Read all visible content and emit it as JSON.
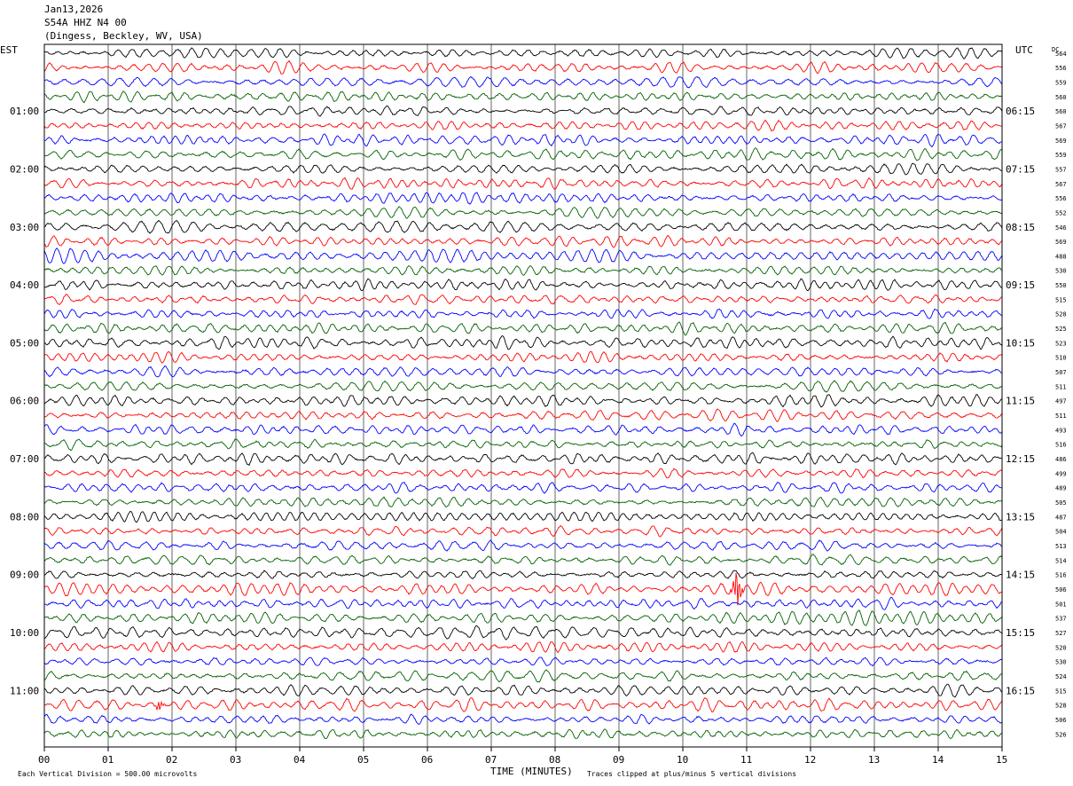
{
  "header": {
    "date": "Jan13,2026",
    "station": "S54A HHZ N4 00",
    "location": "(Dingess, Beckley, WV, USA)"
  },
  "chart_data": {
    "type": "line",
    "title": "S54A HHZ N4 00",
    "xlabel": "TIME (MINUTES)",
    "x_ticks": [
      "00",
      "01",
      "02",
      "03",
      "04",
      "05",
      "06",
      "07",
      "08",
      "09",
      "10",
      "11",
      "12",
      "13",
      "14",
      "15"
    ],
    "xlim": [
      0,
      15
    ],
    "left_axis_label": "EST",
    "right_axis_label": "UTC",
    "dc_label": "DC",
    "left_hour_labels": [
      "01:00",
      "02:00",
      "03:00",
      "04:00",
      "05:00",
      "06:00",
      "07:00",
      "08:00",
      "09:00",
      "10:00",
      "11:00"
    ],
    "right_hour_labels": [
      "06:15",
      "07:15",
      "08:15",
      "09:15",
      "10:15",
      "11:15",
      "12:15",
      "13:15",
      "14:15",
      "15:15",
      "16:15"
    ],
    "trace_colors": [
      "#000000",
      "#ff0000",
      "#0000ff",
      "#006000"
    ],
    "dc_values": [
      "564",
      "556",
      "559",
      "560",
      "560",
      "567",
      "569",
      "559",
      "557",
      "567",
      "556",
      "552",
      "546",
      "569",
      "488",
      "530",
      "550",
      "515",
      "528",
      "525",
      "523",
      "510",
      "507",
      "511",
      "497",
      "511",
      "493",
      "516",
      "486",
      "499",
      "489",
      "505",
      "487",
      "504",
      "513",
      "514",
      "516",
      "506",
      "501",
      "537",
      "527",
      "520",
      "530",
      "524",
      "515",
      "528",
      "506",
      "526"
    ],
    "events": [
      {
        "trace": 37,
        "minute": 10.85,
        "note": "large clipped spike"
      },
      {
        "trace": 45,
        "minute": 1.8,
        "note": "small spike"
      }
    ],
    "footer_left": "Each Vertical Division =  500.00 microvolts",
    "footer_right": "Traces clipped at plus/minus 5 vertical divisions"
  }
}
